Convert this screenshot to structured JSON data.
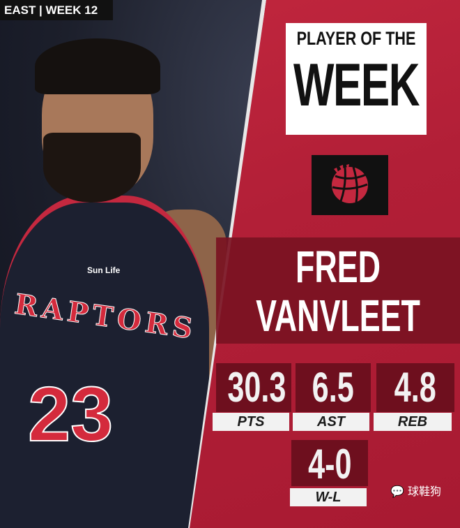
{
  "tag": "EAST | WEEK 12",
  "title": {
    "line1": "PLAYER OF THE",
    "line2": "WEEK"
  },
  "team_logo": "raptors-basketball-logo",
  "player": {
    "first": "FRED",
    "last": "VANVLEET"
  },
  "jersey": {
    "team": "RAPTORS",
    "number": "23",
    "sponsor": "Sun Life"
  },
  "stats": [
    {
      "value": "30.3",
      "label": "PTS"
    },
    {
      "value": "6.5",
      "label": "AST"
    },
    {
      "value": "4.8",
      "label": "REB"
    },
    {
      "value": "4-0",
      "label": "W-L"
    }
  ],
  "watermark": "球鞋狗",
  "colors": {
    "red": "#b21f37",
    "dark_red": "#6e0f1e",
    "black": "#111111"
  }
}
